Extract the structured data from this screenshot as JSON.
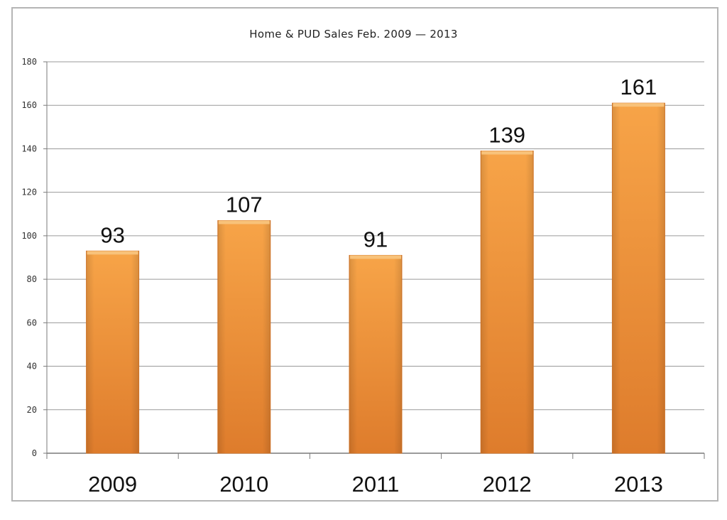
{
  "chart_data": {
    "type": "bar",
    "title": "Home & PUD Sales Feb. 2009 — 2013",
    "categories": [
      "2009",
      "2010",
      "2011",
      "2012",
      "2013"
    ],
    "values": [
      93,
      107,
      91,
      139,
      161
    ],
    "data_labels": [
      "93",
      "107",
      "91",
      "139",
      "161"
    ],
    "xlabel": "",
    "ylabel": "",
    "ylim": [
      0,
      180
    ],
    "yticks": [
      0,
      20,
      40,
      60,
      80,
      100,
      120,
      140,
      160,
      180
    ],
    "grid": true,
    "legend": "none",
    "colors": {
      "bar": "#f59a3e",
      "bar_dark": "#d9782a",
      "bar_top": "#f8c27a",
      "grid": "#9a9a9a"
    }
  }
}
